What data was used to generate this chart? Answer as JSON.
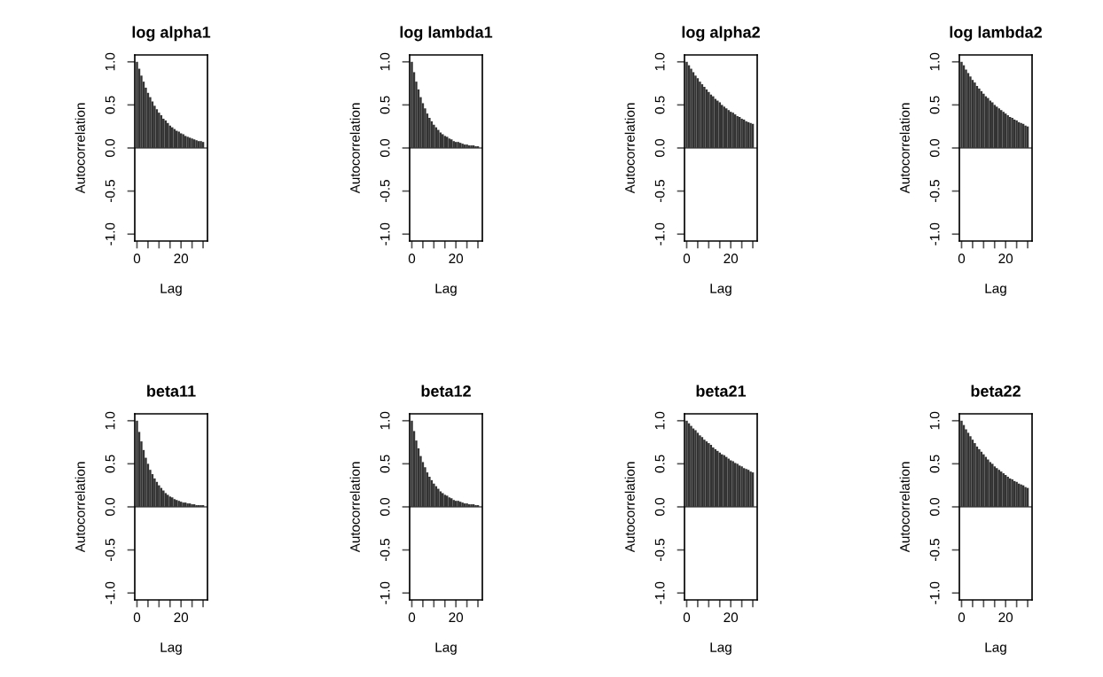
{
  "chart_data": [
    {
      "type": "bar",
      "title": "log alpha1",
      "xlabel": "Lag",
      "ylabel": "Autocorrelation",
      "x": [
        0,
        1,
        2,
        3,
        4,
        5,
        6,
        7,
        8,
        9,
        10,
        11,
        12,
        13,
        14,
        15,
        16,
        17,
        18,
        19,
        20,
        21,
        22,
        23,
        24,
        25,
        26,
        27,
        28,
        29,
        30
      ],
      "color": "#333333",
      "xlim": [
        -1,
        32
      ],
      "ylim": [
        -1.08,
        1.08
      ],
      "xticks": [
        0,
        {
          "value": 5,
          "label": null
        },
        {
          "value": 10,
          "label": null
        },
        {
          "value": 15,
          "label": null
        },
        20,
        {
          "value": 25,
          "label": null
        },
        {
          "value": 30,
          "label": null
        }
      ],
      "yticks": [
        {
          "value": -1,
          "label": "-1.0"
        },
        {
          "value": -0.5,
          "label": "-0.5"
        },
        {
          "value": 0,
          "label": "0.0"
        },
        {
          "value": 0.5,
          "label": "0.5"
        },
        {
          "value": 1,
          "label": "1.0"
        }
      ],
      "ref_lines": [
        {
          "axis": "y",
          "value": 0,
          "color": "#000000"
        }
      ],
      "values": [
        1,
        0.92,
        0.84,
        0.77,
        0.7,
        0.64,
        0.59,
        0.54,
        0.49,
        0.45,
        0.41,
        0.38,
        0.34,
        0.32,
        0.29,
        0.26,
        0.24,
        0.22,
        0.2,
        0.19,
        0.17,
        0.16,
        0.14,
        0.13,
        0.12,
        0.11,
        0.1,
        0.09,
        0.08,
        0.08,
        0.07
      ]
    },
    {
      "type": "bar",
      "title": "log lambda1",
      "xlabel": "Lag",
      "ylabel": "Autocorrelation",
      "x": [
        0,
        1,
        2,
        3,
        4,
        5,
        6,
        7,
        8,
        9,
        10,
        11,
        12,
        13,
        14,
        15,
        16,
        17,
        18,
        19,
        20,
        21,
        22,
        23,
        24,
        25,
        26,
        27,
        28,
        29,
        30
      ],
      "color": "#333333",
      "xlim": [
        -1,
        32
      ],
      "ylim": [
        -1.08,
        1.08
      ],
      "xticks": [
        0,
        {
          "value": 5,
          "label": null
        },
        {
          "value": 10,
          "label": null
        },
        {
          "value": 15,
          "label": null
        },
        20,
        {
          "value": 25,
          "label": null
        },
        {
          "value": 30,
          "label": null
        }
      ],
      "yticks": [
        {
          "value": -1,
          "label": "-1.0"
        },
        {
          "value": -0.5,
          "label": "-0.5"
        },
        {
          "value": 0,
          "label": "0.0"
        },
        {
          "value": 0.5,
          "label": "0.5"
        },
        {
          "value": 1,
          "label": "1.0"
        }
      ],
      "ref_lines": [
        {
          "axis": "y",
          "value": 0,
          "color": "#000000"
        }
      ],
      "values": [
        1,
        0.88,
        0.77,
        0.68,
        0.59,
        0.52,
        0.46,
        0.4,
        0.35,
        0.31,
        0.27,
        0.24,
        0.21,
        0.18,
        0.16,
        0.14,
        0.13,
        0.11,
        0.1,
        0.08,
        0.07,
        0.07,
        0.06,
        0.05,
        0.04,
        0.04,
        0.03,
        0.03,
        0.03,
        0.02,
        0.02
      ]
    },
    {
      "type": "bar",
      "title": "log alpha2",
      "xlabel": "Lag",
      "ylabel": "Autocorrelation",
      "x": [
        0,
        1,
        2,
        3,
        4,
        5,
        6,
        7,
        8,
        9,
        10,
        11,
        12,
        13,
        14,
        15,
        16,
        17,
        18,
        19,
        20,
        21,
        22,
        23,
        24,
        25,
        26,
        27,
        28,
        29,
        30
      ],
      "color": "#333333",
      "xlim": [
        -1,
        32
      ],
      "ylim": [
        -1.08,
        1.08
      ],
      "xticks": [
        0,
        {
          "value": 5,
          "label": null
        },
        {
          "value": 10,
          "label": null
        },
        {
          "value": 15,
          "label": null
        },
        20,
        {
          "value": 25,
          "label": null
        },
        {
          "value": 30,
          "label": null
        }
      ],
      "yticks": [
        {
          "value": -1,
          "label": "-1.0"
        },
        {
          "value": -0.5,
          "label": "-0.5"
        },
        {
          "value": 0,
          "label": "0.0"
        },
        {
          "value": 0.5,
          "label": "0.5"
        },
        {
          "value": 1,
          "label": "1.0"
        }
      ],
      "ref_lines": [
        {
          "axis": "y",
          "value": 0,
          "color": "#000000"
        }
      ],
      "values": [
        1,
        0.96,
        0.92,
        0.88,
        0.84,
        0.81,
        0.77,
        0.74,
        0.71,
        0.68,
        0.65,
        0.62,
        0.6,
        0.57,
        0.55,
        0.53,
        0.5,
        0.48,
        0.46,
        0.44,
        0.42,
        0.41,
        0.39,
        0.37,
        0.36,
        0.34,
        0.33,
        0.31,
        0.3,
        0.29,
        0.28
      ]
    },
    {
      "type": "bar",
      "title": "log lambda2",
      "xlabel": "Lag",
      "ylabel": "Autocorrelation",
      "x": [
        0,
        1,
        2,
        3,
        4,
        5,
        6,
        7,
        8,
        9,
        10,
        11,
        12,
        13,
        14,
        15,
        16,
        17,
        18,
        19,
        20,
        21,
        22,
        23,
        24,
        25,
        26,
        27,
        28,
        29,
        30
      ],
      "color": "#333333",
      "xlim": [
        -1,
        32
      ],
      "ylim": [
        -1.08,
        1.08
      ],
      "xticks": [
        0,
        {
          "value": 5,
          "label": null
        },
        {
          "value": 10,
          "label": null
        },
        {
          "value": 15,
          "label": null
        },
        20,
        {
          "value": 25,
          "label": null
        },
        {
          "value": 30,
          "label": null
        }
      ],
      "yticks": [
        {
          "value": -1,
          "label": "-1.0"
        },
        {
          "value": -0.5,
          "label": "-0.5"
        },
        {
          "value": 0,
          "label": "0.0"
        },
        {
          "value": 0.5,
          "label": "0.5"
        },
        {
          "value": 1,
          "label": "1.0"
        }
      ],
      "ref_lines": [
        {
          "axis": "y",
          "value": 0,
          "color": "#000000"
        }
      ],
      "values": [
        1,
        0.96,
        0.91,
        0.87,
        0.83,
        0.79,
        0.76,
        0.72,
        0.69,
        0.66,
        0.63,
        0.6,
        0.58,
        0.55,
        0.53,
        0.5,
        0.48,
        0.46,
        0.44,
        0.42,
        0.4,
        0.38,
        0.36,
        0.35,
        0.33,
        0.32,
        0.3,
        0.29,
        0.28,
        0.26,
        0.25
      ]
    },
    {
      "type": "bar",
      "title": "beta11",
      "xlabel": "Lag",
      "ylabel": "Autocorrelation",
      "x": [
        0,
        1,
        2,
        3,
        4,
        5,
        6,
        7,
        8,
        9,
        10,
        11,
        12,
        13,
        14,
        15,
        16,
        17,
        18,
        19,
        20,
        21,
        22,
        23,
        24,
        25,
        26,
        27,
        28,
        29,
        30
      ],
      "color": "#333333",
      "xlim": [
        -1,
        32
      ],
      "ylim": [
        -1.08,
        1.08
      ],
      "xticks": [
        0,
        {
          "value": 5,
          "label": null
        },
        {
          "value": 10,
          "label": null
        },
        {
          "value": 15,
          "label": null
        },
        20,
        {
          "value": 25,
          "label": null
        },
        {
          "value": 30,
          "label": null
        }
      ],
      "yticks": [
        {
          "value": -1,
          "label": "-1.0"
        },
        {
          "value": -0.5,
          "label": "-0.5"
        },
        {
          "value": 0,
          "label": "0.0"
        },
        {
          "value": 0.5,
          "label": "0.5"
        },
        {
          "value": 1,
          "label": "1.0"
        }
      ],
      "ref_lines": [
        {
          "axis": "y",
          "value": 0,
          "color": "#000000"
        }
      ],
      "values": [
        1,
        0.87,
        0.76,
        0.66,
        0.57,
        0.5,
        0.43,
        0.38,
        0.33,
        0.29,
        0.25,
        0.22,
        0.19,
        0.16,
        0.14,
        0.12,
        0.11,
        0.09,
        0.08,
        0.07,
        0.06,
        0.05,
        0.05,
        0.04,
        0.04,
        0.03,
        0.03,
        0.02,
        0.02,
        0.02,
        0.02
      ]
    },
    {
      "type": "bar",
      "title": "beta12",
      "xlabel": "Lag",
      "ylabel": "Autocorrelation",
      "x": [
        0,
        1,
        2,
        3,
        4,
        5,
        6,
        7,
        8,
        9,
        10,
        11,
        12,
        13,
        14,
        15,
        16,
        17,
        18,
        19,
        20,
        21,
        22,
        23,
        24,
        25,
        26,
        27,
        28,
        29,
        30
      ],
      "color": "#333333",
      "xlim": [
        -1,
        32
      ],
      "ylim": [
        -1.08,
        1.08
      ],
      "xticks": [
        0,
        {
          "value": 5,
          "label": null
        },
        {
          "value": 10,
          "label": null
        },
        {
          "value": 15,
          "label": null
        },
        20,
        {
          "value": 25,
          "label": null
        },
        {
          "value": 30,
          "label": null
        }
      ],
      "yticks": [
        {
          "value": -1,
          "label": "-1.0"
        },
        {
          "value": -0.5,
          "label": "-0.5"
        },
        {
          "value": 0,
          "label": "0.0"
        },
        {
          "value": 0.5,
          "label": "0.5"
        },
        {
          "value": 1,
          "label": "1.0"
        }
      ],
      "ref_lines": [
        {
          "axis": "y",
          "value": 0,
          "color": "#000000"
        }
      ],
      "values": [
        1,
        0.88,
        0.77,
        0.68,
        0.59,
        0.52,
        0.46,
        0.4,
        0.35,
        0.31,
        0.27,
        0.24,
        0.21,
        0.18,
        0.16,
        0.14,
        0.13,
        0.11,
        0.1,
        0.08,
        0.07,
        0.07,
        0.06,
        0.05,
        0.04,
        0.04,
        0.03,
        0.03,
        0.03,
        0.02,
        0.02
      ]
    },
    {
      "type": "bar",
      "title": "beta21",
      "xlabel": "Lag",
      "ylabel": "Autocorrelation",
      "x": [
        0,
        1,
        2,
        3,
        4,
        5,
        6,
        7,
        8,
        9,
        10,
        11,
        12,
        13,
        14,
        15,
        16,
        17,
        18,
        19,
        20,
        21,
        22,
        23,
        24,
        25,
        26,
        27,
        28,
        29,
        30
      ],
      "color": "#333333",
      "xlim": [
        -1,
        32
      ],
      "ylim": [
        -1.08,
        1.08
      ],
      "xticks": [
        0,
        {
          "value": 5,
          "label": null
        },
        {
          "value": 10,
          "label": null
        },
        {
          "value": 15,
          "label": null
        },
        20,
        {
          "value": 25,
          "label": null
        },
        {
          "value": 30,
          "label": null
        }
      ],
      "yticks": [
        {
          "value": -1,
          "label": "-1.0"
        },
        {
          "value": -0.5,
          "label": "-0.5"
        },
        {
          "value": 0,
          "label": "0.0"
        },
        {
          "value": 0.5,
          "label": "0.5"
        },
        {
          "value": 1,
          "label": "1.0"
        }
      ],
      "ref_lines": [
        {
          "axis": "y",
          "value": 0,
          "color": "#000000"
        }
      ],
      "values": [
        1,
        0.97,
        0.94,
        0.91,
        0.89,
        0.86,
        0.83,
        0.81,
        0.78,
        0.76,
        0.74,
        0.72,
        0.69,
        0.67,
        0.65,
        0.63,
        0.61,
        0.6,
        0.58,
        0.56,
        0.54,
        0.53,
        0.51,
        0.5,
        0.48,
        0.47,
        0.45,
        0.44,
        0.43,
        0.41,
        0.4
      ]
    },
    {
      "type": "bar",
      "title": "beta22",
      "xlabel": "Lag",
      "ylabel": "Autocorrelation",
      "x": [
        0,
        1,
        2,
        3,
        4,
        5,
        6,
        7,
        8,
        9,
        10,
        11,
        12,
        13,
        14,
        15,
        16,
        17,
        18,
        19,
        20,
        21,
        22,
        23,
        24,
        25,
        26,
        27,
        28,
        29,
        30
      ],
      "color": "#333333",
      "xlim": [
        -1,
        32
      ],
      "ylim": [
        -1.08,
        1.08
      ],
      "xticks": [
        0,
        {
          "value": 5,
          "label": null
        },
        {
          "value": 10,
          "label": null
        },
        {
          "value": 15,
          "label": null
        },
        20,
        {
          "value": 25,
          "label": null
        },
        {
          "value": 30,
          "label": null
        }
      ],
      "yticks": [
        {
          "value": -1,
          "label": "-1.0"
        },
        {
          "value": -0.5,
          "label": "-0.5"
        },
        {
          "value": 0,
          "label": "0.0"
        },
        {
          "value": 0.5,
          "label": "0.5"
        },
        {
          "value": 1,
          "label": "1.0"
        }
      ],
      "ref_lines": [
        {
          "axis": "y",
          "value": 0,
          "color": "#000000"
        }
      ],
      "values": [
        1,
        0.95,
        0.9,
        0.86,
        0.82,
        0.78,
        0.74,
        0.7,
        0.67,
        0.64,
        0.61,
        0.58,
        0.55,
        0.52,
        0.5,
        0.47,
        0.45,
        0.43,
        0.41,
        0.39,
        0.37,
        0.35,
        0.33,
        0.32,
        0.3,
        0.29,
        0.27,
        0.26,
        0.25,
        0.23,
        0.22
      ]
    }
  ]
}
